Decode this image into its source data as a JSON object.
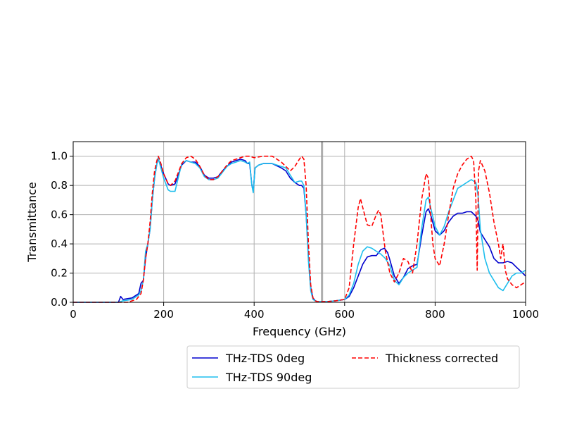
{
  "chart_data": {
    "type": "line",
    "title": "",
    "xlabel": "Frequency (GHz)",
    "ylabel": "Transmittance",
    "xlim": [
      0,
      1000
    ],
    "ylim": [
      0,
      1.1
    ],
    "xticks": [
      0,
      200,
      400,
      600,
      800,
      1000
    ],
    "xtick_labels": [
      "0",
      "200",
      "400",
      "600",
      "800",
      "1000"
    ],
    "yticks": [
      0.0,
      0.2,
      0.4,
      0.6,
      0.8,
      1.0
    ],
    "ytick_labels": [
      "0.0",
      "0.2",
      "0.4",
      "0.6",
      "0.8",
      "1.0"
    ],
    "grid": true,
    "vertical_markers": [
      550
    ],
    "legend": {
      "placement": "below",
      "columns": 2
    },
    "series": [
      {
        "name": "THz-TDS 0deg",
        "color": "#0000cd",
        "dash": "solid",
        "x": [
          0,
          100,
          105,
          110,
          130,
          145,
          150,
          155,
          160,
          165,
          170,
          175,
          180,
          185,
          188,
          192,
          200,
          210,
          215,
          225,
          240,
          250,
          260,
          270,
          280,
          290,
          300,
          310,
          320,
          330,
          340,
          350,
          360,
          370,
          380,
          385,
          390,
          395,
          398,
          402,
          410,
          420,
          440,
          460,
          470,
          480,
          490,
          500,
          505,
          510,
          515,
          520,
          525,
          530,
          535,
          540,
          545,
          550,
          560,
          580,
          600,
          610,
          620,
          630,
          640,
          650,
          660,
          670,
          680,
          688,
          695,
          700,
          710,
          720,
          730,
          740,
          750,
          760,
          770,
          780,
          785,
          790,
          800,
          810,
          820,
          830,
          840,
          850,
          860,
          870,
          880,
          890,
          895,
          900,
          910,
          920,
          930,
          940,
          950,
          960,
          970,
          980,
          990,
          1000
        ],
        "y": [
          0,
          0,
          0.04,
          0.02,
          0.03,
          0.06,
          0.13,
          0.15,
          0.3,
          0.4,
          0.5,
          0.7,
          0.85,
          0.95,
          0.98,
          0.95,
          0.88,
          0.81,
          0.8,
          0.81,
          0.94,
          0.97,
          0.96,
          0.96,
          0.93,
          0.87,
          0.85,
          0.85,
          0.86,
          0.9,
          0.93,
          0.96,
          0.97,
          0.98,
          0.97,
          0.95,
          0.95,
          0.8,
          0.76,
          0.92,
          0.94,
          0.95,
          0.95,
          0.92,
          0.9,
          0.85,
          0.82,
          0.8,
          0.8,
          0.78,
          0.6,
          0.3,
          0.1,
          0.03,
          0.01,
          0.005,
          0.005,
          0.005,
          0.005,
          0.01,
          0.02,
          0.04,
          0.1,
          0.18,
          0.26,
          0.31,
          0.32,
          0.32,
          0.36,
          0.37,
          0.34,
          0.29,
          0.18,
          0.13,
          0.17,
          0.23,
          0.25,
          0.26,
          0.45,
          0.62,
          0.64,
          0.6,
          0.49,
          0.46,
          0.49,
          0.55,
          0.59,
          0.61,
          0.61,
          0.62,
          0.62,
          0.59,
          0.56,
          0.48,
          0.43,
          0.38,
          0.3,
          0.27,
          0.27,
          0.28,
          0.27,
          0.24,
          0.21,
          0.18
        ]
      },
      {
        "name": "THz-TDS 90deg",
        "color": "#1ebeed",
        "dash": "solid",
        "x": [
          0,
          100,
          110,
          130,
          145,
          150,
          155,
          160,
          165,
          170,
          175,
          180,
          185,
          188,
          192,
          200,
          210,
          215,
          225,
          240,
          250,
          260,
          270,
          280,
          290,
          300,
          310,
          320,
          330,
          340,
          350,
          360,
          370,
          380,
          385,
          390,
          395,
          398,
          402,
          410,
          420,
          440,
          460,
          470,
          480,
          490,
          500,
          505,
          510,
          515,
          520,
          525,
          530,
          535,
          540,
          545,
          550,
          560,
          580,
          600,
          610,
          620,
          630,
          640,
          650,
          660,
          670,
          680,
          690,
          700,
          710,
          720,
          730,
          740,
          750,
          760,
          770,
          780,
          785,
          790,
          800,
          810,
          820,
          830,
          840,
          850,
          860,
          870,
          880,
          890,
          895,
          900,
          910,
          920,
          930,
          940,
          950,
          960,
          970,
          980,
          990,
          1000
        ],
        "y": [
          0,
          0,
          0.01,
          0.02,
          0.05,
          0.08,
          0.15,
          0.35,
          0.4,
          0.5,
          0.7,
          0.85,
          0.95,
          0.99,
          0.94,
          0.85,
          0.77,
          0.76,
          0.76,
          0.95,
          0.97,
          0.96,
          0.95,
          0.92,
          0.86,
          0.84,
          0.84,
          0.85,
          0.89,
          0.93,
          0.95,
          0.96,
          0.97,
          0.96,
          0.95,
          0.96,
          0.8,
          0.75,
          0.92,
          0.94,
          0.95,
          0.95,
          0.93,
          0.92,
          0.87,
          0.82,
          0.83,
          0.83,
          0.8,
          0.6,
          0.28,
          0.08,
          0.02,
          0.01,
          0.005,
          0.005,
          0.005,
          0.005,
          0.01,
          0.02,
          0.05,
          0.13,
          0.26,
          0.35,
          0.38,
          0.37,
          0.35,
          0.33,
          0.3,
          0.25,
          0.15,
          0.12,
          0.17,
          0.2,
          0.22,
          0.24,
          0.5,
          0.7,
          0.72,
          0.65,
          0.52,
          0.46,
          0.52,
          0.62,
          0.7,
          0.78,
          0.8,
          0.82,
          0.84,
          0.82,
          0.73,
          0.5,
          0.3,
          0.2,
          0.15,
          0.1,
          0.08,
          0.13,
          0.18,
          0.2,
          0.2,
          0.22
        ]
      },
      {
        "name": "Thickness corrected",
        "color": "#ff0000",
        "dash": "dashed",
        "x": [
          0,
          100,
          120,
          140,
          150,
          155,
          160,
          165,
          170,
          175,
          180,
          185,
          188,
          192,
          200,
          210,
          215,
          225,
          240,
          250,
          260,
          270,
          280,
          290,
          300,
          310,
          320,
          330,
          340,
          350,
          360,
          370,
          380,
          390,
          400,
          420,
          440,
          460,
          470,
          480,
          490,
          500,
          505,
          510,
          515,
          520,
          525,
          530,
          535,
          540,
          545,
          550,
          560,
          580,
          600,
          610,
          620,
          630,
          635,
          640,
          650,
          660,
          670,
          675,
          680,
          690,
          700,
          710,
          720,
          730,
          740,
          750,
          760,
          770,
          780,
          785,
          790,
          795,
          800,
          810,
          820,
          830,
          840,
          850,
          860,
          870,
          880,
          885,
          890,
          893,
          896,
          900,
          910,
          920,
          930,
          940,
          945,
          950,
          955,
          960,
          970,
          980,
          990,
          1000
        ],
        "y": [
          0,
          0,
          0,
          0.02,
          0.06,
          0.15,
          0.3,
          0.4,
          0.55,
          0.75,
          0.9,
          0.97,
          1.0,
          0.97,
          0.88,
          0.81,
          0.8,
          0.83,
          0.95,
          0.99,
          1.0,
          0.98,
          0.93,
          0.87,
          0.84,
          0.84,
          0.86,
          0.9,
          0.94,
          0.97,
          0.98,
          0.99,
          1.0,
          1.0,
          0.99,
          1.0,
          1.0,
          0.96,
          0.93,
          0.9,
          0.93,
          0.98,
          1.0,
          0.98,
          0.8,
          0.4,
          0.12,
          0.03,
          0.01,
          0.005,
          0.005,
          0.005,
          0.005,
          0.01,
          0.02,
          0.1,
          0.4,
          0.65,
          0.71,
          0.65,
          0.53,
          0.52,
          0.6,
          0.63,
          0.6,
          0.35,
          0.2,
          0.14,
          0.2,
          0.3,
          0.28,
          0.2,
          0.4,
          0.7,
          0.88,
          0.85,
          0.6,
          0.4,
          0.3,
          0.25,
          0.4,
          0.6,
          0.78,
          0.88,
          0.94,
          0.98,
          1.0,
          0.97,
          0.7,
          0.22,
          0.9,
          0.97,
          0.9,
          0.75,
          0.55,
          0.4,
          0.3,
          0.4,
          0.22,
          0.16,
          0.12,
          0.1,
          0.12,
          0.14
        ]
      }
    ]
  }
}
